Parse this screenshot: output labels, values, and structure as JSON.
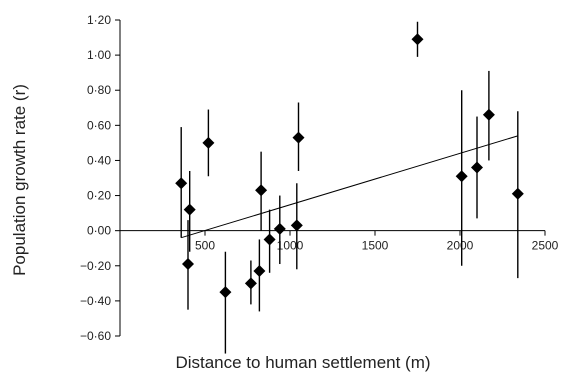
{
  "chart_data": {
    "type": "scatter",
    "title": "",
    "xlabel": "Distance to human settlement (m)",
    "ylabel": "Population growth rate (r)",
    "xlim": [
      0,
      2500
    ],
    "ylim": [
      -0.6,
      1.2
    ],
    "x_ticks": [
      500,
      1000,
      1500,
      2000,
      2500
    ],
    "x_tick_labels": [
      "500",
      "1000",
      "1500",
      "2000",
      "2500"
    ],
    "y_ticks": [
      -0.6,
      -0.4,
      -0.2,
      0,
      0.2,
      0.4,
      0.6,
      0.8,
      1.0,
      1.2
    ],
    "y_tick_labels": [
      "−0·60",
      "−0·40",
      "−0·20",
      "0·00",
      "0·20",
      "0·40",
      "0·60",
      "0·80",
      "1·00",
      "1·20"
    ],
    "grid": false,
    "legend": "none",
    "marker": "diamond",
    "marker_color": "#000000",
    "points": [
      {
        "x": 360,
        "y": 0.27,
        "err_low": -0.04,
        "err_high": 0.59
      },
      {
        "x": 400,
        "y": -0.19,
        "err_low": -0.45,
        "err_high": 0.06
      },
      {
        "x": 410,
        "y": 0.12,
        "err_low": -0.12,
        "err_high": 0.34
      },
      {
        "x": 520,
        "y": 0.5,
        "err_low": 0.31,
        "err_high": 0.69
      },
      {
        "x": 620,
        "y": -0.35,
        "err_low": -0.7,
        "err_high": -0.12
      },
      {
        "x": 770,
        "y": -0.3,
        "err_low": -0.42,
        "err_high": -0.17
      },
      {
        "x": 820,
        "y": -0.23,
        "err_low": -0.46,
        "err_high": -0.05
      },
      {
        "x": 830,
        "y": 0.23,
        "err_low": 0.0,
        "err_high": 0.45
      },
      {
        "x": 880,
        "y": -0.05,
        "err_low": -0.24,
        "err_high": 0.12
      },
      {
        "x": 940,
        "y": 0.01,
        "err_low": -0.19,
        "err_high": 0.2
      },
      {
        "x": 1040,
        "y": 0.03,
        "err_low": -0.22,
        "err_high": 0.27
      },
      {
        "x": 1050,
        "y": 0.53,
        "err_low": 0.34,
        "err_high": 0.73
      },
      {
        "x": 1750,
        "y": 1.09,
        "err_low": 0.99,
        "err_high": 1.19
      },
      {
        "x": 2010,
        "y": 0.31,
        "err_low": -0.2,
        "err_high": 0.8
      },
      {
        "x": 2100,
        "y": 0.36,
        "err_low": 0.07,
        "err_high": 0.65
      },
      {
        "x": 2170,
        "y": 0.66,
        "err_low": 0.4,
        "err_high": 0.91
      },
      {
        "x": 2340,
        "y": 0.21,
        "err_low": -0.27,
        "err_high": 0.68
      }
    ],
    "trend_line": {
      "x": [
        360,
        2340
      ],
      "y": [
        -0.04,
        0.54
      ]
    }
  }
}
